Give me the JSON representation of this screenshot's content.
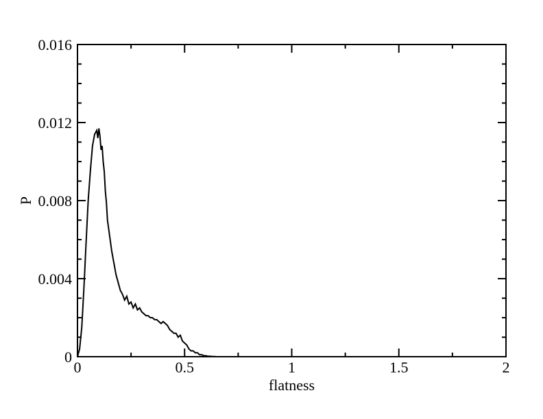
{
  "chart_data": {
    "type": "line",
    "title": "",
    "xlabel": "flatness",
    "ylabel": "P",
    "xlim": [
      0,
      2
    ],
    "ylim": [
      0,
      0.016
    ],
    "grid": false,
    "legend": "none",
    "line_color": "#000000",
    "x_ticks": [
      {
        "value": 0,
        "label": "0"
      },
      {
        "value": 0.5,
        "label": "0.5"
      },
      {
        "value": 1,
        "label": "1"
      },
      {
        "value": 1.5,
        "label": "1.5"
      },
      {
        "value": 2,
        "label": "2"
      }
    ],
    "y_ticks": [
      {
        "value": 0,
        "label": "0"
      },
      {
        "value": 0.004,
        "label": "0.004"
      },
      {
        "value": 0.008,
        "label": "0.008"
      },
      {
        "value": 0.012,
        "label": "0.012"
      },
      {
        "value": 0.016,
        "label": "0.016"
      }
    ],
    "series": [
      {
        "x": [
          0.0,
          0.01,
          0.02,
          0.03,
          0.04,
          0.05,
          0.06,
          0.07,
          0.08,
          0.09,
          0.095,
          0.1,
          0.105,
          0.11,
          0.115,
          0.12,
          0.125,
          0.13,
          0.135,
          0.14,
          0.15,
          0.16,
          0.17,
          0.18,
          0.19,
          0.2,
          0.21,
          0.22,
          0.23,
          0.24,
          0.25,
          0.26,
          0.27,
          0.28,
          0.29,
          0.3,
          0.31,
          0.32,
          0.33,
          0.34,
          0.35,
          0.36,
          0.37,
          0.38,
          0.39,
          0.4,
          0.41,
          0.42,
          0.43,
          0.44,
          0.45,
          0.46,
          0.47,
          0.48,
          0.49,
          0.5,
          0.51,
          0.52,
          0.53,
          0.54,
          0.55,
          0.56,
          0.57,
          0.58,
          0.59,
          0.6,
          0.61,
          0.62,
          0.63,
          0.64,
          0.65,
          0.66,
          0.67,
          0.68
        ],
        "y": [
          0.0,
          0.0004,
          0.0015,
          0.0035,
          0.0058,
          0.008,
          0.0095,
          0.0108,
          0.0114,
          0.0116,
          0.0112,
          0.0117,
          0.0113,
          0.0106,
          0.0108,
          0.01,
          0.0095,
          0.0085,
          0.0079,
          0.007,
          0.0062,
          0.0054,
          0.0048,
          0.0042,
          0.0038,
          0.0034,
          0.0032,
          0.0029,
          0.0031,
          0.0027,
          0.0028,
          0.0025,
          0.0027,
          0.0024,
          0.0025,
          0.0023,
          0.0022,
          0.0021,
          0.0021,
          0.002,
          0.002,
          0.0019,
          0.0019,
          0.0018,
          0.0017,
          0.0018,
          0.0017,
          0.0016,
          0.0014,
          0.0013,
          0.0012,
          0.0012,
          0.001,
          0.0011,
          0.0008,
          0.0007,
          0.0006,
          0.0004,
          0.0003,
          0.0003,
          0.0002,
          0.0002,
          0.0001,
          0.0001,
          5e-05,
          5e-05,
          2e-05,
          2e-05,
          1e-05,
          1e-05,
          0.0,
          0.0,
          0.0,
          0.0
        ]
      }
    ]
  }
}
